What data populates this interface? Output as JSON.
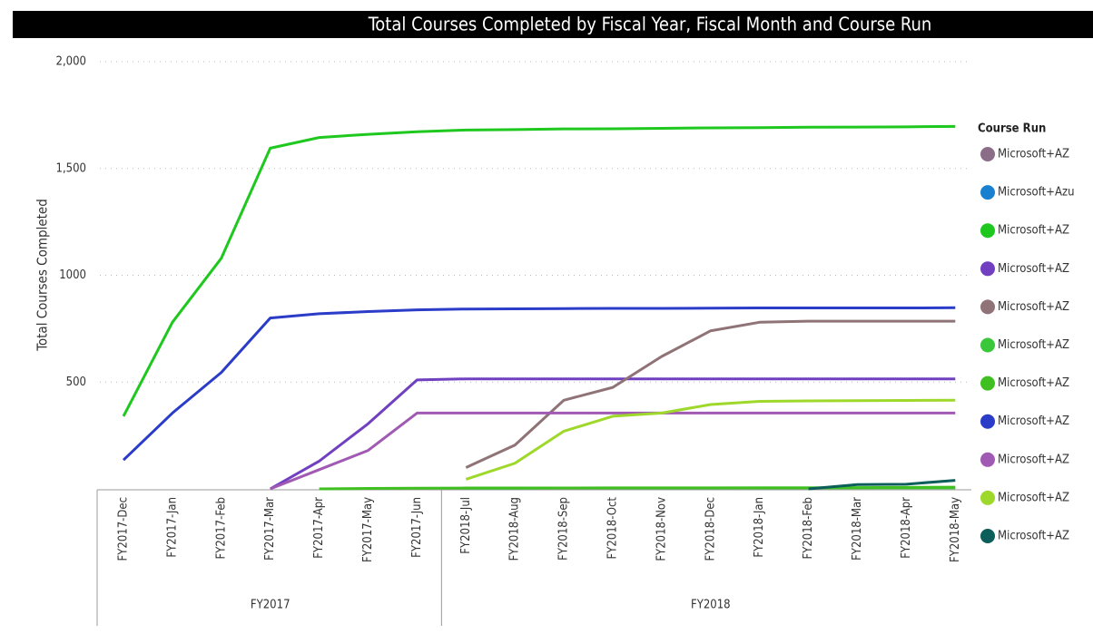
{
  "chart_data": {
    "type": "line",
    "title": "Total Courses Completed by Fiscal Year, Fiscal Month and Course Run",
    "y_label": "Total Courses Completed",
    "categories": [
      "FY2017-Dec",
      "FY2017-Jan",
      "FY2017-Feb",
      "FY2017-Mar",
      "FY2017-Apr",
      "FY2017-May",
      "FY2017-Jun",
      "FY2018-Jul",
      "FY2018-Aug",
      "FY2018-Sep",
      "FY2018-Oct",
      "FY2018-Nov",
      "FY2018-Dec",
      "FY2018-Jan",
      "FY2018-Feb",
      "FY2018-Mar",
      "FY2018-Apr",
      "FY2018-May"
    ],
    "groups": [
      {
        "label": "FY2017",
        "count": 7
      },
      {
        "label": "FY2018",
        "count": 11
      }
    ],
    "ylim": [
      0,
      2000
    ],
    "yticks": [
      500,
      1000,
      {
        "value": 1500,
        "label": "1,500"
      },
      {
        "value": 2000,
        "label": "2,000"
      }
    ],
    "grid": true,
    "legend_title": "Course Run",
    "legend": "right",
    "series": [
      {
        "name": "Microsoft+AZ",
        "color": "#8c6d88",
        "values": [
          null,
          null,
          null,
          null,
          null,
          null,
          null,
          null,
          null,
          null,
          null,
          null,
          null,
          null,
          null,
          null,
          null,
          null
        ]
      },
      {
        "name": "Microsoft+Azu",
        "color": "#1a80d0",
        "values": [
          null,
          null,
          null,
          null,
          null,
          null,
          null,
          null,
          null,
          null,
          null,
          null,
          null,
          null,
          null,
          null,
          null,
          null
        ]
      },
      {
        "name": "Microsoft+AZ",
        "color": "#1ec81e",
        "values": [
          340,
          780,
          1080,
          1595,
          1645,
          1660,
          1672,
          1680,
          1682,
          1685,
          1686,
          1688,
          1690,
          1691,
          1693,
          1694,
          1695,
          1697
        ]
      },
      {
        "name": "Microsoft+AZ",
        "color": "#7040c0",
        "values": [
          null,
          null,
          null,
          0,
          130,
          305,
          510,
          515,
          515,
          515,
          515,
          515,
          515,
          515,
          515,
          515,
          515,
          515
        ]
      },
      {
        "name": "Microsoft+AZ",
        "color": "#8f7377",
        "values": [
          null,
          null,
          null,
          null,
          null,
          null,
          null,
          100,
          205,
          415,
          475,
          620,
          740,
          780,
          785,
          785,
          785,
          785
        ]
      },
      {
        "name": "Microsoft+AZ",
        "color": "#3ac83a",
        "values": [
          null,
          null,
          null,
          null,
          null,
          null,
          null,
          3,
          3,
          4,
          4,
          4,
          4,
          5,
          5,
          5,
          5,
          5
        ]
      },
      {
        "name": "Microsoft+AZ",
        "color": "#40c020",
        "values": [
          null,
          null,
          null,
          null,
          0,
          2,
          3,
          4,
          4,
          4,
          5,
          5,
          5,
          5,
          5,
          6,
          7,
          8
        ]
      },
      {
        "name": "Microsoft+AZ",
        "color": "#2a3cc8",
        "values": [
          135,
          355,
          545,
          800,
          820,
          830,
          838,
          842,
          843,
          844,
          845,
          845,
          846,
          847,
          847,
          847,
          847,
          848
        ]
      },
      {
        "name": "Microsoft+AZ",
        "color": "#a05ab4",
        "values": [
          null,
          null,
          null,
          0,
          90,
          180,
          355,
          355,
          355,
          355,
          355,
          355,
          355,
          355,
          355,
          355,
          355,
          355
        ]
      },
      {
        "name": "Microsoft+AZ",
        "color": "#9ed82a",
        "values": [
          null,
          null,
          null,
          null,
          null,
          null,
          null,
          45,
          120,
          270,
          340,
          355,
          395,
          410,
          412,
          413,
          414,
          415
        ]
      },
      {
        "name": "Microsoft+AZ",
        "color": "#0b5e5a",
        "values": [
          null,
          null,
          null,
          null,
          null,
          null,
          null,
          null,
          null,
          null,
          null,
          null,
          null,
          null,
          0,
          20,
          22,
          40
        ]
      }
    ]
  }
}
